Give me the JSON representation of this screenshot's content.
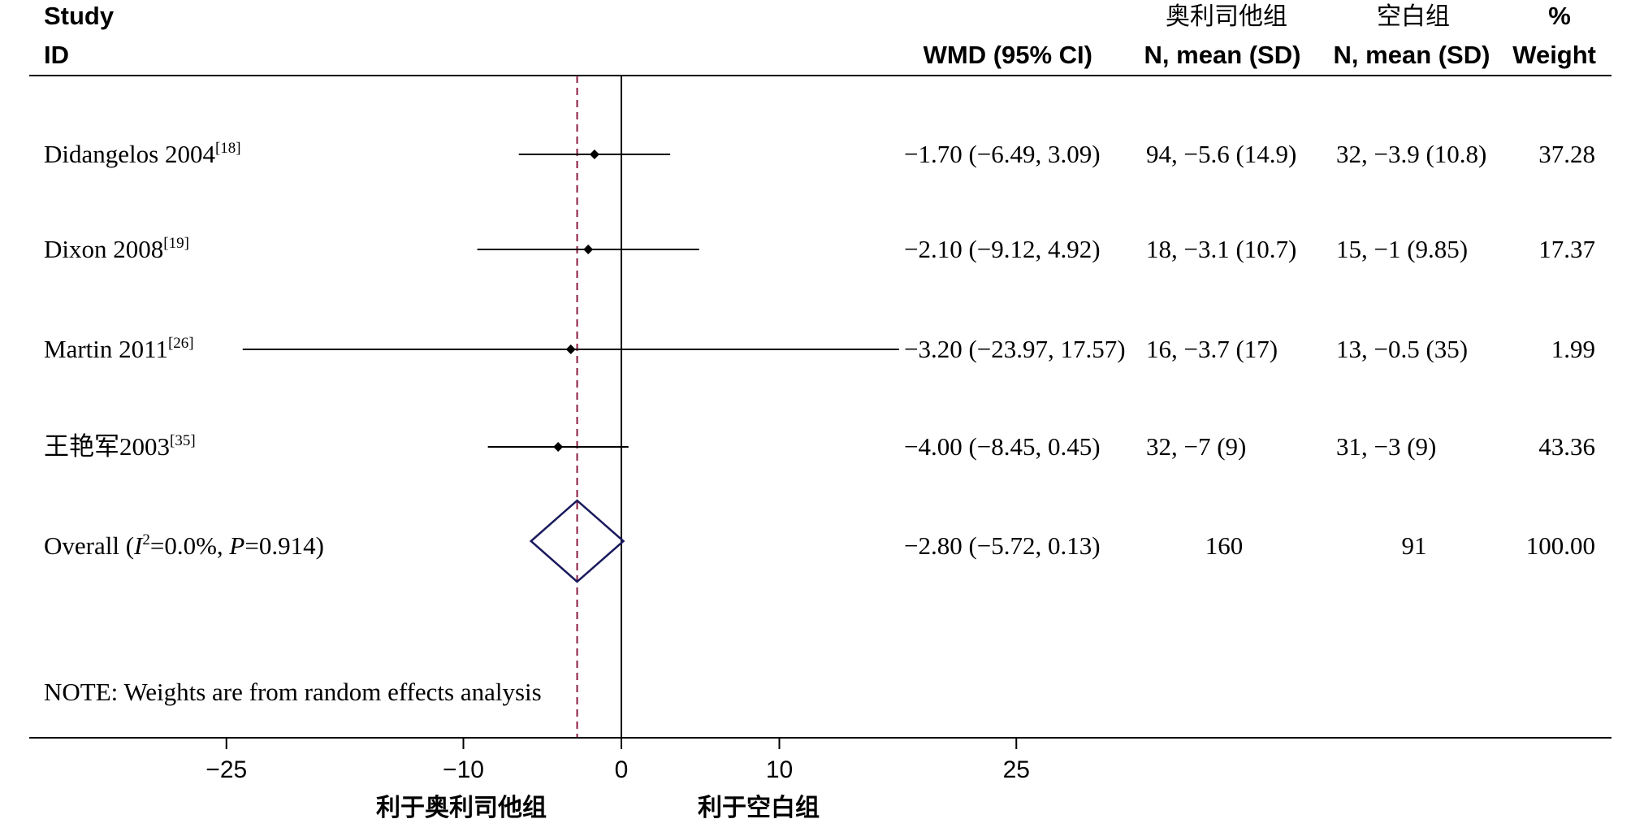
{
  "headers": {
    "study": "Study",
    "id": "ID",
    "wmd": "WMD (95% CI)",
    "group1_name": "奥利司他组",
    "group1_sub": "N, mean (SD)",
    "group2_name": "空白组",
    "group2_sub": "N, mean (SD)",
    "weight_top": "%",
    "weight_bottom": "Weight"
  },
  "overall": {
    "label_prefix": "Overall  (",
    "i2_symbol": "I",
    "i2_exp": "2",
    "i2_value": "=0.0%, ",
    "p_symbol": "P",
    "p_value": "=0.914)",
    "wmd": "−2.80 (−5.72, 0.13)",
    "group1": "160",
    "group2": "91",
    "weight": "100.00"
  },
  "note": "NOTE: Weights are from random effects analysis",
  "favors": {
    "left": "利于奥利司他组",
    "right": "利于空白组"
  },
  "colors": {
    "axis": "#000000",
    "overall_line": "#8b1a3c",
    "diamond": "#1a1a5e"
  },
  "chart_data": {
    "type": "forest",
    "effect_measure": "WMD (95% CI)",
    "x_ticks": [
      "−25",
      "−10",
      "0",
      "10",
      "25"
    ],
    "x_tick_values": [
      -25,
      -10,
      0,
      10,
      25
    ],
    "xlim": [
      -30,
      50
    ],
    "null_line": 0,
    "overall_line": -2.8,
    "studies": [
      {
        "name": "Didangelos 2004",
        "ref": "[18]",
        "est": -1.7,
        "lo": -6.49,
        "hi": 3.09,
        "wmd": "−1.70 (−6.49, 3.09)",
        "group1": "94, −5.6 (14.9)",
        "group2": "32, −3.9 (10.8)",
        "weight": "37.28"
      },
      {
        "name": "Dixon 2008",
        "ref": "[19]",
        "est": -2.1,
        "lo": -9.12,
        "hi": 4.92,
        "wmd": "−2.10 (−9.12, 4.92)",
        "group1": "18, −3.1 (10.7)",
        "group2": "15, −1 (9.85)",
        "weight": "17.37"
      },
      {
        "name": "Martin 2011",
        "ref": "[26]",
        "est": -3.2,
        "lo": -23.97,
        "hi": 17.57,
        "wmd": "−3.20 (−23.97, 17.57)",
        "group1": "16, −3.7 (17)",
        "group2": "13, −0.5 (35)",
        "weight": "1.99"
      },
      {
        "name": "王艳军2003",
        "ref": "[35]",
        "est": -4.0,
        "lo": -8.45,
        "hi": 0.45,
        "wmd": "−4.00 (−8.45, 0.45)",
        "group1": "32, −7 (9)",
        "group2": "31, −3 (9)",
        "weight": "43.36"
      }
    ],
    "pooled": {
      "est": -2.8,
      "lo": -5.72,
      "hi": 0.13
    }
  }
}
